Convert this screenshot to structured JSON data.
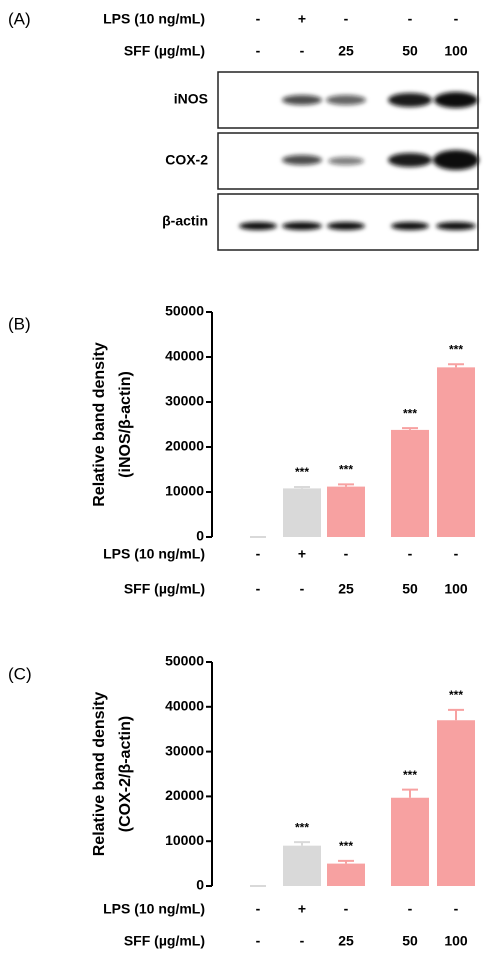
{
  "blot": {
    "panel_label": "(A)",
    "treatments": [
      {
        "name": "LPS (10 ng/mL)",
        "levels": [
          "-",
          "+",
          "-",
          "-",
          "-"
        ]
      },
      {
        "name": "SFF (µg/mL)",
        "levels": [
          "-",
          "-",
          "25",
          "50",
          "100"
        ]
      }
    ],
    "bands": [
      "iNOS",
      "COX-2",
      "β-actin"
    ]
  },
  "chart_data": [
    {
      "type": "bar",
      "panel_label": "(B)",
      "ylabel": [
        "Relative band density",
        "(iNOS/β-actin)"
      ],
      "treatments": [
        {
          "name": "LPS (10 ng/mL)",
          "levels": [
            "-",
            "+",
            "-",
            "-",
            "-"
          ]
        },
        {
          "name": "SFF (µg/mL)",
          "levels": [
            "-",
            "-",
            "25",
            "50",
            "100"
          ]
        }
      ],
      "values": [
        0,
        10800,
        11200,
        23800,
        37700
      ],
      "errors": [
        0,
        300,
        500,
        400,
        700
      ],
      "significance": [
        null,
        "***",
        "***",
        "***",
        "***"
      ],
      "colors": [
        "#d9d9d9",
        "#d9d9d9",
        "#f7a1a1",
        "#f7a1a1",
        "#f7a1a1"
      ],
      "ylim": [
        0,
        50000
      ],
      "yticks": [
        0,
        10000,
        20000,
        30000,
        40000,
        50000
      ]
    },
    {
      "type": "bar",
      "panel_label": "(C)",
      "ylabel": [
        "Relative band density",
        "(COX-2/β-actin)"
      ],
      "treatments": [
        {
          "name": "LPS (10 ng/mL)",
          "levels": [
            "-",
            "+",
            "-",
            "-",
            "-"
          ]
        },
        {
          "name": "SFF (µg/mL)",
          "levels": [
            "-",
            "-",
            "25",
            "50",
            "100"
          ]
        }
      ],
      "values": [
        0,
        9000,
        5000,
        19700,
        37000
      ],
      "errors": [
        0,
        800,
        600,
        1800,
        2300
      ],
      "significance": [
        null,
        "***",
        "***",
        "***",
        "***"
      ],
      "colors": [
        "#d9d9d9",
        "#d9d9d9",
        "#f7a1a1",
        "#f7a1a1",
        "#f7a1a1"
      ],
      "ylim": [
        0,
        50000
      ],
      "yticks": [
        0,
        10000,
        20000,
        30000,
        40000,
        50000
      ]
    }
  ]
}
